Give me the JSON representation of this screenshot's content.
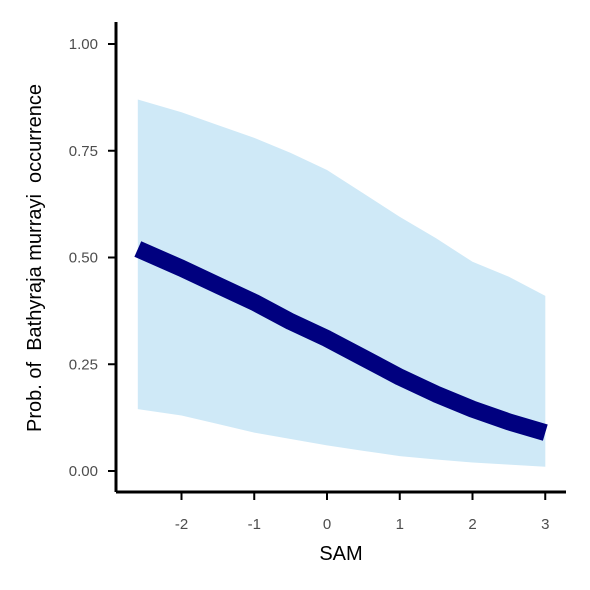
{
  "chart_data": {
    "type": "line",
    "title": "",
    "xlabel": "SAM",
    "ylabel": "Prob. of  Bathyraja murrayi  occurrence",
    "xlim": [
      -2.6,
      3.0
    ],
    "ylim": [
      0.0,
      1.0
    ],
    "x_ticks": [
      -2,
      -1,
      0,
      1,
      2,
      3
    ],
    "x_tick_labels": [
      "-2",
      "-1",
      "0",
      "1",
      "2",
      "3"
    ],
    "y_ticks": [
      0.0,
      0.25,
      0.5,
      0.75,
      1.0
    ],
    "y_tick_labels": [
      "0.00",
      "0.25",
      "0.50",
      "0.75",
      "1.00"
    ],
    "grid": false,
    "legend": "none",
    "series": [
      {
        "x": [
          -2.6,
          -2.0,
          -1.5,
          -1.0,
          -0.5,
          0.0,
          0.5,
          1.0,
          1.5,
          2.0,
          2.5,
          3.0
        ],
        "y": [
          0.52,
          0.475,
          0.435,
          0.395,
          0.35,
          0.31,
          0.265,
          0.22,
          0.18,
          0.145,
          0.115,
          0.09
        ],
        "lower": [
          0.145,
          0.13,
          0.11,
          0.09,
          0.075,
          0.06,
          0.047,
          0.035,
          0.027,
          0.02,
          0.015,
          0.01
        ],
        "upper": [
          0.87,
          0.84,
          0.81,
          0.78,
          0.745,
          0.705,
          0.65,
          0.595,
          0.545,
          0.49,
          0.455,
          0.41
        ]
      }
    ],
    "colors": {
      "line": "#00007f",
      "ribbon": "#cfe9f7",
      "axis": "#000000",
      "tick_text": "#4d4d4d"
    }
  }
}
